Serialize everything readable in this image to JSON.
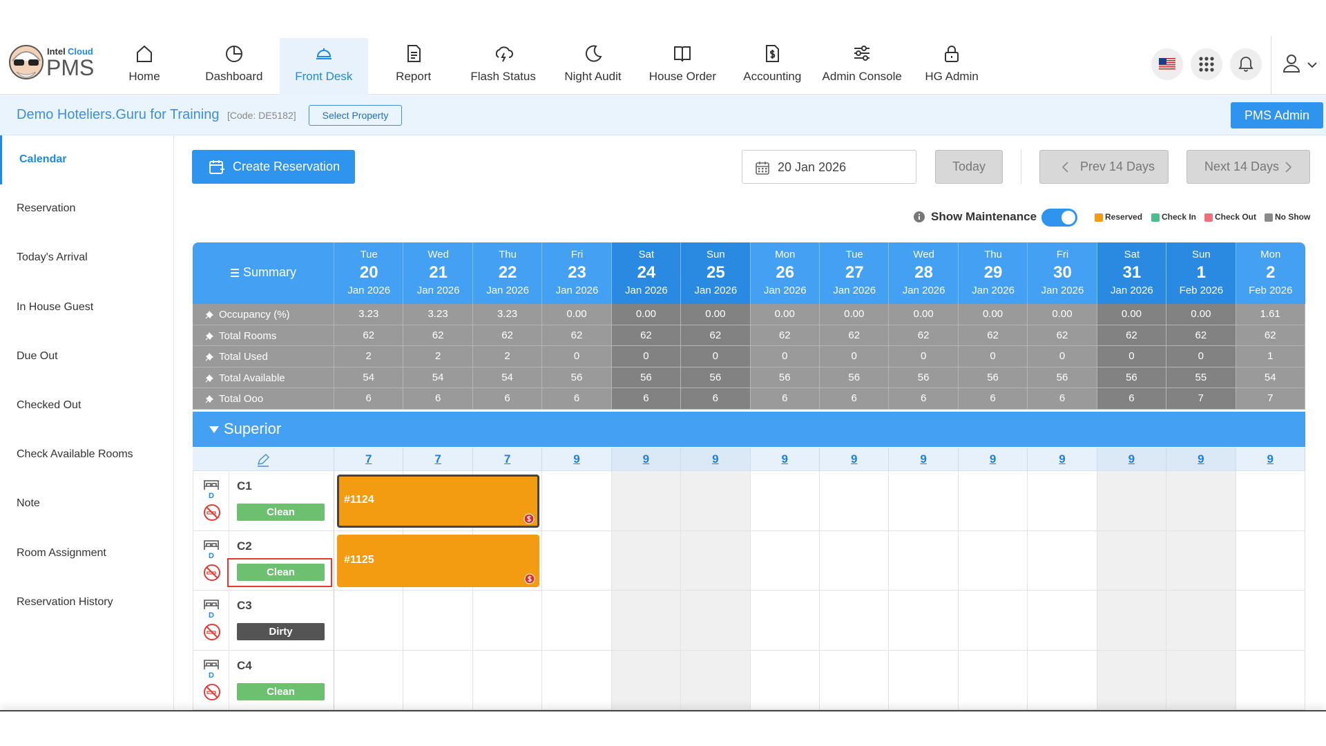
{
  "nav": {
    "brand": {
      "small": "Intel",
      "accent": "Cloud",
      "name": "PMS"
    },
    "items": [
      "Home",
      "Dashboard",
      "Front Desk",
      "Report",
      "Flash Status",
      "Night Audit",
      "House Order",
      "Accounting",
      "Admin Console",
      "HG Admin"
    ],
    "active": 2
  },
  "property": {
    "name": "Demo Hoteliers.Guru for Training",
    "code": "[Code: DE5182]",
    "select": "Select Property",
    "admin": "PMS Admin"
  },
  "sidebar": {
    "items": [
      "Calendar",
      "Reservation",
      "Today's Arrival",
      "In House Guest",
      "Due Out",
      "Checked Out",
      "Check Available Rooms",
      "Note",
      "Room Assignment",
      "Reservation History"
    ],
    "active": 0
  },
  "toolbar": {
    "create": "Create Reservation",
    "date": "20 Jan 2026",
    "today": "Today",
    "prev": "Prev 14 Days",
    "next": "Next 14 Days",
    "maintenance": "Show Maintenance",
    "legend": [
      {
        "label": "Reserved",
        "color": "#f39c12"
      },
      {
        "label": "Check In",
        "color": "#4dbd8e"
      },
      {
        "label": "Check Out",
        "color": "#ef6f7a"
      },
      {
        "label": "No Show",
        "color": "#8a8a8a"
      }
    ]
  },
  "grid": {
    "summary": "Summary",
    "days": [
      {
        "dow": "Tue",
        "day": "20",
        "month": "Jan 2026",
        "weekend": false
      },
      {
        "dow": "Wed",
        "day": "21",
        "month": "Jan 2026",
        "weekend": false
      },
      {
        "dow": "Thu",
        "day": "22",
        "month": "Jan 2026",
        "weekend": false
      },
      {
        "dow": "Fri",
        "day": "23",
        "month": "Jan 2026",
        "weekend": false
      },
      {
        "dow": "Sat",
        "day": "24",
        "month": "Jan 2026",
        "weekend": true
      },
      {
        "dow": "Sun",
        "day": "25",
        "month": "Jan 2026",
        "weekend": true
      },
      {
        "dow": "Mon",
        "day": "26",
        "month": "Jan 2026",
        "weekend": false
      },
      {
        "dow": "Tue",
        "day": "27",
        "month": "Jan 2026",
        "weekend": false
      },
      {
        "dow": "Wed",
        "day": "28",
        "month": "Jan 2026",
        "weekend": false
      },
      {
        "dow": "Thu",
        "day": "29",
        "month": "Jan 2026",
        "weekend": false
      },
      {
        "dow": "Fri",
        "day": "30",
        "month": "Jan 2026",
        "weekend": false
      },
      {
        "dow": "Sat",
        "day": "31",
        "month": "Jan 2026",
        "weekend": true
      },
      {
        "dow": "Sun",
        "day": "1",
        "month": "Feb 2026",
        "weekend": true
      },
      {
        "dow": "Mon",
        "day": "2",
        "month": "Feb 2026",
        "weekend": false
      }
    ],
    "rows": [
      {
        "label": "Occupancy (%)",
        "values": [
          "3.23",
          "3.23",
          "3.23",
          "0.00",
          "0.00",
          "0.00",
          "0.00",
          "0.00",
          "0.00",
          "0.00",
          "0.00",
          "0.00",
          "0.00",
          "1.61"
        ]
      },
      {
        "label": "Total Rooms",
        "values": [
          "62",
          "62",
          "62",
          "62",
          "62",
          "62",
          "62",
          "62",
          "62",
          "62",
          "62",
          "62",
          "62",
          "62"
        ]
      },
      {
        "label": "Total Used",
        "values": [
          "2",
          "2",
          "2",
          "0",
          "0",
          "0",
          "0",
          "0",
          "0",
          "0",
          "0",
          "0",
          "0",
          "1"
        ]
      },
      {
        "label": "Total Available",
        "values": [
          "54",
          "54",
          "54",
          "56",
          "56",
          "56",
          "56",
          "56",
          "56",
          "56",
          "56",
          "56",
          "55",
          "54"
        ]
      },
      {
        "label": "Total Ooo",
        "values": [
          "6",
          "6",
          "6",
          "6",
          "6",
          "6",
          "6",
          "6",
          "6",
          "6",
          "6",
          "6",
          "7",
          "7"
        ]
      }
    ],
    "room_type": "Superior",
    "availability": [
      "7",
      "7",
      "7",
      "9",
      "9",
      "9",
      "9",
      "9",
      "9",
      "9",
      "9",
      "9",
      "9",
      "9"
    ],
    "rooms": [
      {
        "name": "C1",
        "bed": "D",
        "status": "Clean"
      },
      {
        "name": "C2",
        "bed": "D",
        "status": "Clean"
      },
      {
        "name": "C3",
        "bed": "D",
        "status": "Dirty"
      },
      {
        "name": "C4",
        "bed": "D",
        "status": "Clean"
      }
    ],
    "reservations": [
      {
        "label": "#1124",
        "room": 0,
        "start": 0,
        "length": 3,
        "selected": true
      },
      {
        "label": "#1125",
        "room": 1,
        "start": 0,
        "length": 3,
        "selected": false
      }
    ],
    "highlight_room": 1
  }
}
